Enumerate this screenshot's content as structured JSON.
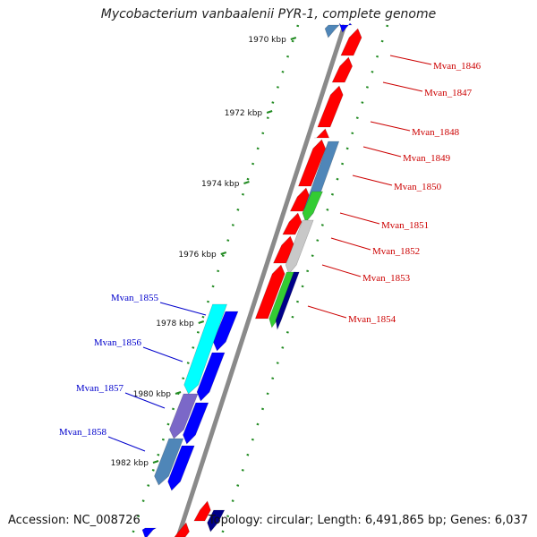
{
  "title": "Mycobacterium vanbaalenii PYR-1, complete genome",
  "footer": {
    "accession": "Accession: NC_008726",
    "summary": "Topology: circular; Length: 6,491,865 bp; Genes: 6,037"
  },
  "colors": {
    "forward_gene": "#ff0000",
    "reverse_gene": "#0000ff",
    "forward_label": "#cc0000",
    "reverse_label": "#0000cc",
    "backbone": "#808080",
    "tick": "#228b22",
    "feature_steelblue": "#4f86b8",
    "feature_green": "#33cc33",
    "feature_gray": "#c8c8c8",
    "feature_navy": "#000088",
    "feature_cyan": "#00ffff",
    "feature_slate": "#7b68c8"
  },
  "ticks": [
    {
      "label": "1970 kbp"
    },
    {
      "label": "1972 kbp"
    },
    {
      "label": "1974 kbp"
    },
    {
      "label": "1976 kbp"
    },
    {
      "label": "1978 kbp"
    },
    {
      "label": "1980 kbp"
    },
    {
      "label": "1982 kbp"
    }
  ],
  "forward_labels": [
    "Mvan_1846",
    "Mvan_1847",
    "Mvan_1848",
    "Mvan_1849",
    "Mvan_1850",
    "Mvan_1851",
    "Mvan_1852",
    "Mvan_1853",
    "Mvan_1854"
  ],
  "reverse_labels": [
    "Mvan_1855",
    "Mvan_1856",
    "Mvan_1857",
    "Mvan_1858"
  ]
}
